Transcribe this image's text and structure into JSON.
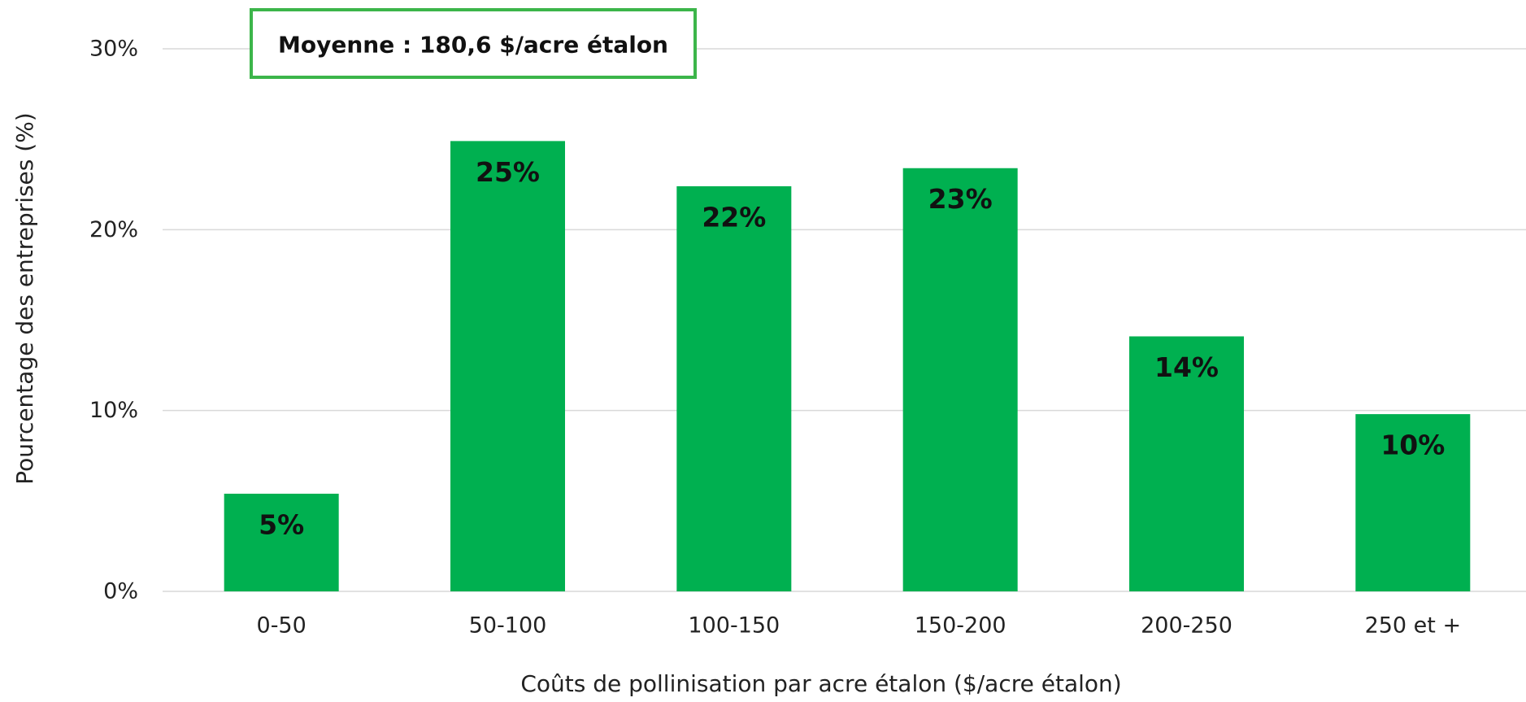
{
  "chart_data": {
    "type": "bar",
    "categories": [
      "0-50",
      "50-100",
      "100-150",
      "150-200",
      "200-250",
      "250 et +"
    ],
    "values": [
      5.4,
      24.9,
      22.4,
      23.4,
      14.1,
      9.8
    ],
    "data_labels": [
      "5%",
      "25%",
      "22%",
      "23%",
      "14%",
      "10%"
    ],
    "xlabel": "Coûts de pollinisation par acre étalon ($/acre étalon)",
    "ylabel": "Pourcentage des entreprises (%)",
    "ylim": [
      0,
      30
    ],
    "yticks": [
      0,
      10,
      20,
      30
    ],
    "ytick_labels": [
      "0%",
      "10%",
      "20%",
      "30%"
    ],
    "grid": true,
    "legend": "none",
    "annotation": "Moyenne : 180,6 $/acre étalon",
    "colors": {
      "bar": "#00B050",
      "annotation_border": "#3CB54A",
      "grid": "#D9D9D9"
    }
  }
}
